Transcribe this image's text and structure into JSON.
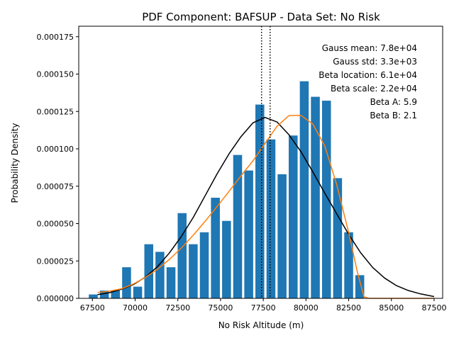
{
  "chart_data": {
    "type": "bar",
    "title": "PDF Component: BAFSUP - Data Set: No Risk",
    "xlabel": "No Risk Altitude (m)",
    "ylabel": "Probability Density",
    "xlim": [
      66700,
      88000
    ],
    "ylim": [
      0,
      0.000182
    ],
    "xticks": [
      67500,
      70000,
      72500,
      75000,
      77500,
      80000,
      82500,
      85000,
      87500
    ],
    "xtick_labels": [
      "67500",
      "70000",
      "72500",
      "75000",
      "77500",
      "80000",
      "82500",
      "85000",
      "87500"
    ],
    "yticks": [
      0,
      2.5e-05,
      5e-05,
      7.5e-05,
      0.0001,
      0.000125,
      0.00015,
      0.000175
    ],
    "ytick_labels": [
      "0.000000",
      "0.000025",
      "0.000050",
      "0.000075",
      "0.000100",
      "0.000125",
      "0.000150",
      "0.000175"
    ],
    "bar_color": "#1f77b4",
    "bar_width": 520,
    "bars": {
      "x": [
        67550,
        68200,
        68850,
        69500,
        70150,
        70800,
        71450,
        72100,
        72750,
        73400,
        74050,
        74700,
        75350,
        76000,
        76650,
        77300,
        77950,
        78600,
        79250,
        79900,
        80550,
        81200,
        81850,
        82500,
        83150
      ],
      "values": [
        2.6e-06,
        5.2e-06,
        5.2e-06,
        2.08e-05,
        7.8e-06,
        3.62e-05,
        3.11e-05,
        2.08e-05,
        5.7e-05,
        3.62e-05,
        4.42e-05,
        6.73e-05,
        5.18e-05,
        9.59e-05,
        8.55e-05,
        0.0001296,
        0.0001063,
        8.3e-05,
        0.0001089,
        0.0001452,
        0.0001348,
        0.0001322,
        8.04e-05,
        4.42e-05,
        1.55e-05
      ]
    },
    "series": [
      {
        "name": "Gauss",
        "color": "#000000",
        "x": [
          67800,
          68500,
          69200,
          69900,
          70600,
          71300,
          72000,
          72700,
          73400,
          74100,
          74800,
          75500,
          76200,
          76900,
          77600,
          78300,
          79000,
          79700,
          80400,
          81100,
          81800,
          82500,
          83200,
          83900,
          84600,
          85300,
          86000,
          86700,
          87500
        ],
        "values": [
          2.5e-06,
          3.8e-06,
          6.1e-06,
          9.2e-06,
          1.42e-05,
          2.11e-05,
          3.03e-05,
          4.13e-05,
          5.41e-05,
          6.87e-05,
          8.33e-05,
          9.67e-05,
          0.0001082,
          0.0001174,
          0.000121,
          0.000118,
          0.0001095,
          9.82e-05,
          8.46e-05,
          7.04e-05,
          5.65e-05,
          4.28e-05,
          3.05e-05,
          2.07e-05,
          1.36e-05,
          8.5e-06,
          5.2e-06,
          3e-06,
          1.2e-06
        ]
      },
      {
        "name": "Beta",
        "color": "#ff7f0e",
        "x": [
          67800,
          68500,
          69200,
          69900,
          70600,
          71300,
          72000,
          72700,
          73400,
          74100,
          74800,
          75500,
          76200,
          76900,
          77600,
          78300,
          79000,
          79700,
          80400,
          81100,
          81800,
          82500,
          83000,
          83400,
          83700,
          84500,
          85500,
          86500,
          87500
        ],
        "values": [
          4e-06,
          4.8e-06,
          6.4e-06,
          9.6e-06,
          1.4e-05,
          1.94e-05,
          2.6e-05,
          3.36e-05,
          4.22e-05,
          5.16e-05,
          6.14e-05,
          7.16e-05,
          8.2e-05,
          9.2e-05,
          0.0001036,
          0.000115,
          0.0001222,
          0.0001224,
          0.0001166,
          0.000102,
          7.6e-05,
          4.4e-05,
          1.8e-05,
          1e-06,
          0.0,
          0.0,
          0.0,
          0.0,
          0.0
        ]
      }
    ],
    "vlines": {
      "style": "dotted",
      "color": "#000000",
      "x": [
        77400,
        77900
      ]
    },
    "annotations": [
      "Gauss mean: 7.8e+04",
      "Gauss std: 3.3e+03",
      "Beta location: 6.1e+04",
      "Beta scale: 2.2e+04",
      "Beta A: 5.9",
      "Beta B: 2.1"
    ]
  }
}
